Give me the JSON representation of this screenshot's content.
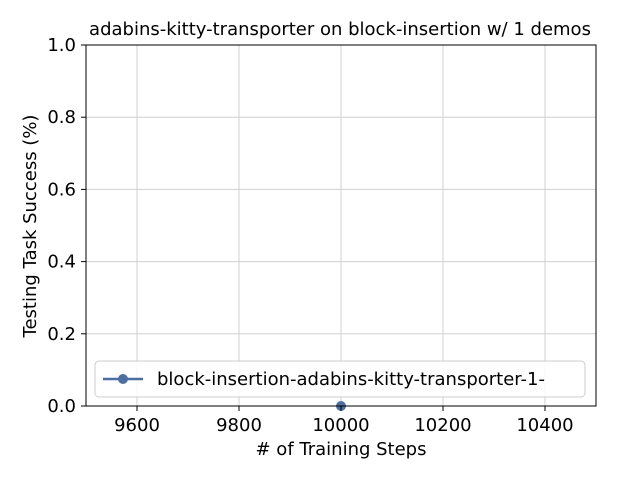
{
  "chart_data": {
    "type": "line",
    "title": "adabins-kitty-transporter on block-insertion w/ 1 demos",
    "xlabel": "# of Training Steps",
    "ylabel": "Testing Task Success (%)",
    "xlim": [
      9500,
      10500
    ],
    "ylim": [
      0.0,
      1.0
    ],
    "xticks": [
      "9600",
      "9800",
      "10000",
      "10200",
      "10400"
    ],
    "yticks": [
      "0.0",
      "0.2",
      "0.4",
      "0.6",
      "0.8",
      "1.0"
    ],
    "grid": true,
    "legend_position": "lower-left",
    "series": [
      {
        "name": "block-insertion-adabins-kitty-transporter-1-",
        "color": "#4a6fa0",
        "points": [
          {
            "x": 10000,
            "y": 0.0
          }
        ]
      }
    ]
  }
}
